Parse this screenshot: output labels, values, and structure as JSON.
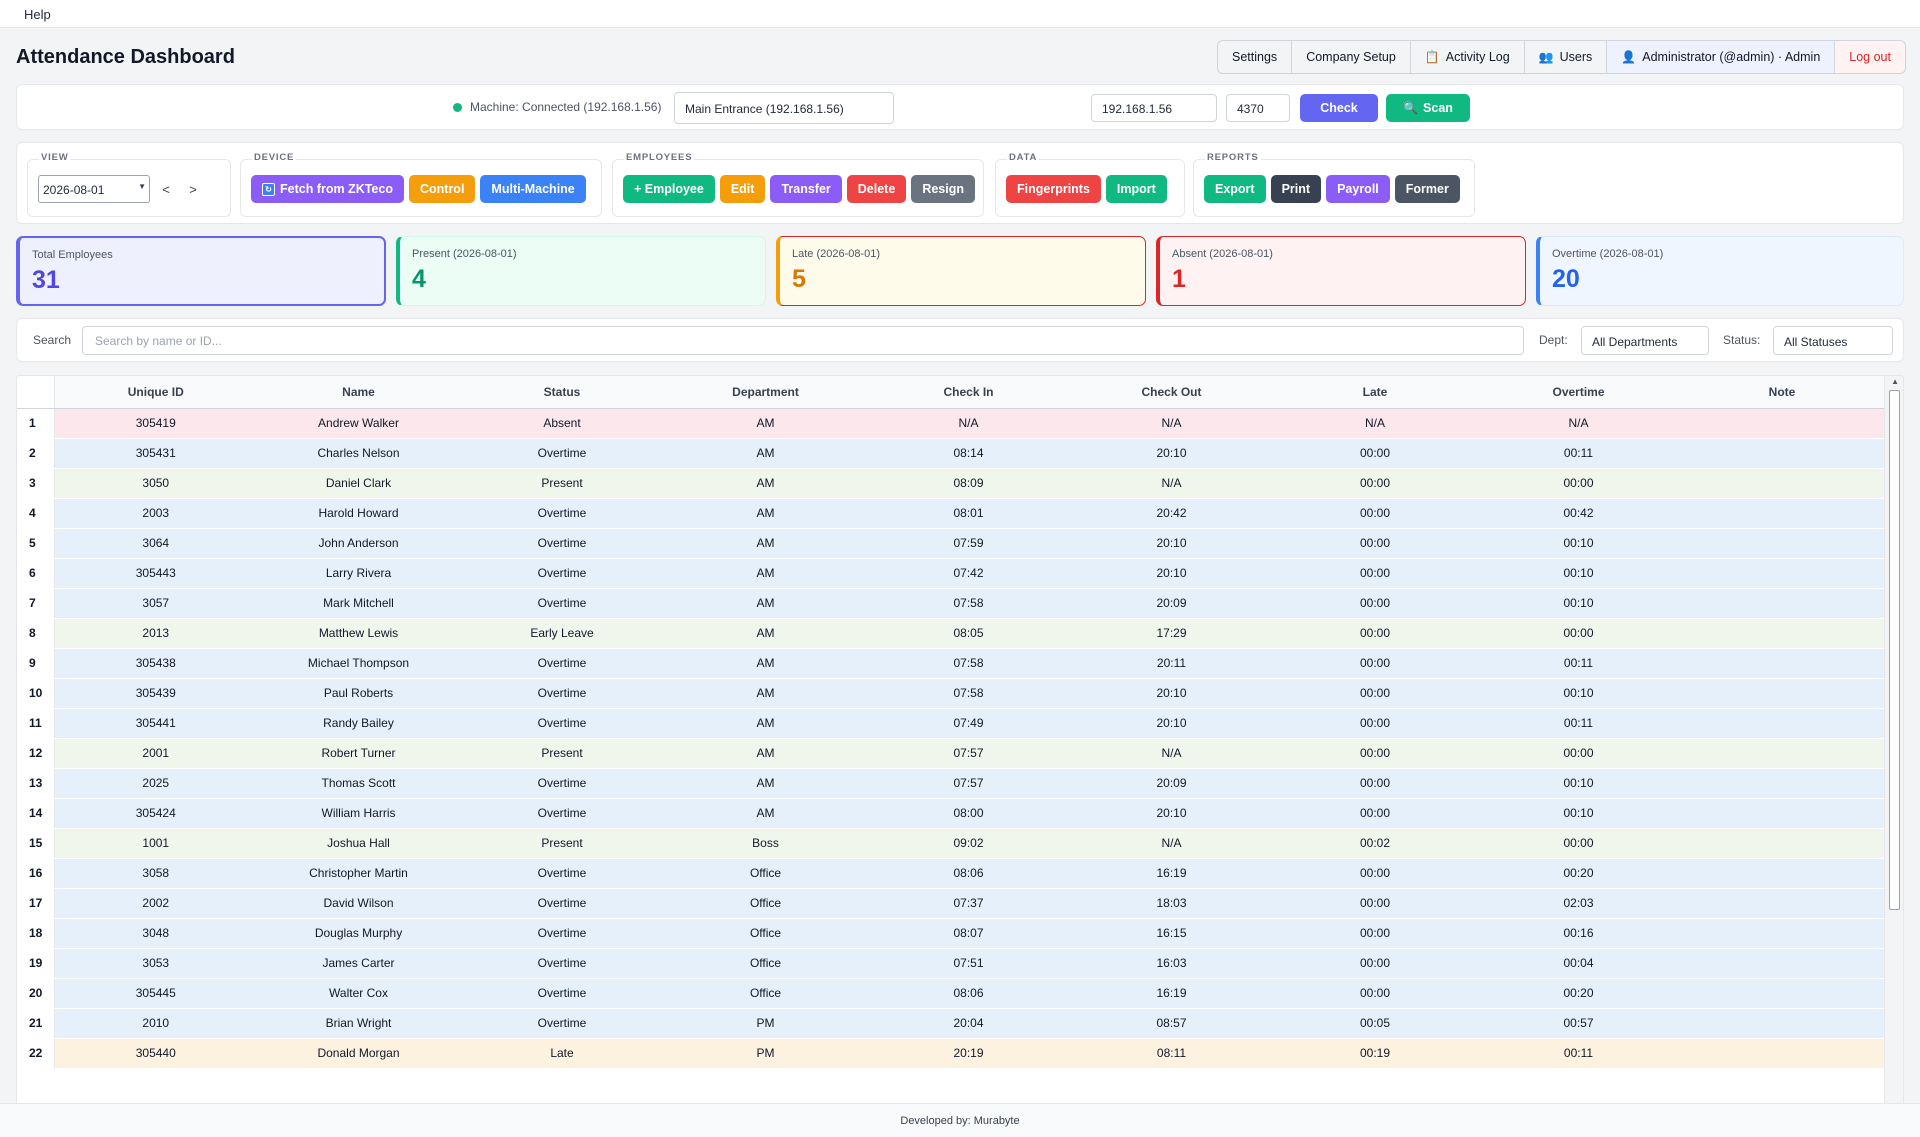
{
  "menubar": {
    "help": "Help"
  },
  "header": {
    "title": "Attendance Dashboard",
    "nav": {
      "settings": "Settings",
      "company_setup": "Company Setup",
      "activity_log": "Activity Log",
      "users": "Users",
      "admin": "Administrator (@admin) · Admin",
      "logout": "Log out"
    }
  },
  "machine": {
    "status": "Machine: Connected (192.168.1.56)",
    "selected": "Main Entrance (192.168.1.56)",
    "ip": "192.168.1.56",
    "port": "4370",
    "check_label": "Check",
    "scan_label": "Scan"
  },
  "toolbar": {
    "view": {
      "label": "VIEW",
      "date": "2026-08-01",
      "prev": "<",
      "next": ">"
    },
    "device": {
      "label": "DEVICE",
      "fetch": "Fetch from ZKTeco",
      "control": "Control",
      "multi": "Multi-Machine"
    },
    "employees": {
      "label": "EMPLOYEES",
      "add": "+ Employee",
      "edit": "Edit",
      "transfer": "Transfer",
      "delete": "Delete",
      "resign": "Resign"
    },
    "data": {
      "label": "DATA",
      "fingerprints": "Fingerprints",
      "import": "Import"
    },
    "reports": {
      "label": "REPORTS",
      "export": "Export",
      "print": "Print",
      "payroll": "Payroll",
      "former": "Former"
    }
  },
  "stats": {
    "total": {
      "label": "Total Employees",
      "value": "31"
    },
    "present": {
      "label": "Present (2026-08-01)",
      "value": "4"
    },
    "late": {
      "label": "Late (2026-08-01)",
      "value": "5"
    },
    "absent": {
      "label": "Absent (2026-08-01)",
      "value": "1"
    },
    "overtime": {
      "label": "Overtime (2026-08-01)",
      "value": "20"
    }
  },
  "filters": {
    "search_label": "Search",
    "search_placeholder": "Search by name or ID...",
    "dept_label": "Dept:",
    "dept_value": "All Departments",
    "status_label": "Status:",
    "status_value": "All Statuses"
  },
  "table": {
    "columns": [
      "Unique ID",
      "Name",
      "Status",
      "Department",
      "Check In",
      "Check Out",
      "Late",
      "Overtime",
      "Note"
    ],
    "rows": [
      {
        "n": "1",
        "id": "305419",
        "name": "Andrew Walker",
        "status": "Absent",
        "dept": "AM",
        "in": "N/A",
        "out": "N/A",
        "late": "N/A",
        "ot": "N/A",
        "note": "",
        "cls": "absent"
      },
      {
        "n": "2",
        "id": "305431",
        "name": "Charles Nelson",
        "status": "Overtime",
        "dept": "AM",
        "in": "08:14",
        "out": "20:10",
        "late": "00:00",
        "ot": "00:11",
        "note": "",
        "cls": "overtime"
      },
      {
        "n": "3",
        "id": "3050",
        "name": "Daniel Clark",
        "status": "Present",
        "dept": "AM",
        "in": "08:09",
        "out": "N/A",
        "late": "00:00",
        "ot": "00:00",
        "note": "",
        "cls": "present"
      },
      {
        "n": "4",
        "id": "2003",
        "name": "Harold Howard",
        "status": "Overtime",
        "dept": "AM",
        "in": "08:01",
        "out": "20:42",
        "late": "00:00",
        "ot": "00:42",
        "note": "",
        "cls": "overtime"
      },
      {
        "n": "5",
        "id": "3064",
        "name": "John Anderson",
        "status": "Overtime",
        "dept": "AM",
        "in": "07:59",
        "out": "20:10",
        "late": "00:00",
        "ot": "00:10",
        "note": "",
        "cls": "overtime"
      },
      {
        "n": "6",
        "id": "305443",
        "name": "Larry Rivera",
        "status": "Overtime",
        "dept": "AM",
        "in": "07:42",
        "out": "20:10",
        "late": "00:00",
        "ot": "00:10",
        "note": "",
        "cls": "overtime"
      },
      {
        "n": "7",
        "id": "3057",
        "name": "Mark Mitchell",
        "status": "Overtime",
        "dept": "AM",
        "in": "07:58",
        "out": "20:09",
        "late": "00:00",
        "ot": "00:10",
        "note": "",
        "cls": "overtime"
      },
      {
        "n": "8",
        "id": "2013",
        "name": "Matthew Lewis",
        "status": "Early Leave",
        "dept": "AM",
        "in": "08:05",
        "out": "17:29",
        "late": "00:00",
        "ot": "00:00",
        "note": "",
        "cls": "early"
      },
      {
        "n": "9",
        "id": "305438",
        "name": "Michael Thompson",
        "status": "Overtime",
        "dept": "AM",
        "in": "07:58",
        "out": "20:11",
        "late": "00:00",
        "ot": "00:11",
        "note": "",
        "cls": "overtime"
      },
      {
        "n": "10",
        "id": "305439",
        "name": "Paul Roberts",
        "status": "Overtime",
        "dept": "AM",
        "in": "07:58",
        "out": "20:10",
        "late": "00:00",
        "ot": "00:10",
        "note": "",
        "cls": "overtime"
      },
      {
        "n": "11",
        "id": "305441",
        "name": "Randy Bailey",
        "status": "Overtime",
        "dept": "AM",
        "in": "07:49",
        "out": "20:10",
        "late": "00:00",
        "ot": "00:11",
        "note": "",
        "cls": "overtime"
      },
      {
        "n": "12",
        "id": "2001",
        "name": "Robert Turner",
        "status": "Present",
        "dept": "AM",
        "in": "07:57",
        "out": "N/A",
        "late": "00:00",
        "ot": "00:00",
        "note": "",
        "cls": "present"
      },
      {
        "n": "13",
        "id": "2025",
        "name": "Thomas Scott",
        "status": "Overtime",
        "dept": "AM",
        "in": "07:57",
        "out": "20:09",
        "late": "00:00",
        "ot": "00:10",
        "note": "",
        "cls": "overtime"
      },
      {
        "n": "14",
        "id": "305424",
        "name": "William Harris",
        "status": "Overtime",
        "dept": "AM",
        "in": "08:00",
        "out": "20:10",
        "late": "00:00",
        "ot": "00:10",
        "note": "",
        "cls": "overtime"
      },
      {
        "n": "15",
        "id": "1001",
        "name": "Joshua Hall",
        "status": "Present",
        "dept": "Boss",
        "in": "09:02",
        "out": "N/A",
        "late": "00:02",
        "ot": "00:00",
        "note": "",
        "cls": "present"
      },
      {
        "n": "16",
        "id": "3058",
        "name": "Christopher Martin",
        "status": "Overtime",
        "dept": "Office",
        "in": "08:06",
        "out": "16:19",
        "late": "00:00",
        "ot": "00:20",
        "note": "",
        "cls": "overtime"
      },
      {
        "n": "17",
        "id": "2002",
        "name": "David Wilson",
        "status": "Overtime",
        "dept": "Office",
        "in": "07:37",
        "out": "18:03",
        "late": "00:00",
        "ot": "02:03",
        "note": "",
        "cls": "overtime"
      },
      {
        "n": "18",
        "id": "3048",
        "name": "Douglas Murphy",
        "status": "Overtime",
        "dept": "Office",
        "in": "08:07",
        "out": "16:15",
        "late": "00:00",
        "ot": "00:16",
        "note": "",
        "cls": "overtime"
      },
      {
        "n": "19",
        "id": "3053",
        "name": "James Carter",
        "status": "Overtime",
        "dept": "Office",
        "in": "07:51",
        "out": "16:03",
        "late": "00:00",
        "ot": "00:04",
        "note": "",
        "cls": "overtime"
      },
      {
        "n": "20",
        "id": "305445",
        "name": "Walter Cox",
        "status": "Overtime",
        "dept": "Office",
        "in": "08:06",
        "out": "16:19",
        "late": "00:00",
        "ot": "00:20",
        "note": "",
        "cls": "overtime"
      },
      {
        "n": "21",
        "id": "2010",
        "name": "Brian Wright",
        "status": "Overtime",
        "dept": "PM",
        "in": "20:04",
        "out": "08:57",
        "late": "00:05",
        "ot": "00:57",
        "note": "",
        "cls": "overtime"
      },
      {
        "n": "22",
        "id": "305440",
        "name": "Donald Morgan",
        "status": "Late",
        "dept": "PM",
        "in": "20:19",
        "out": "08:11",
        "late": "00:19",
        "ot": "00:11",
        "note": "",
        "cls": "late"
      }
    ]
  },
  "footer": {
    "text": "Developed by: Murabyte"
  }
}
